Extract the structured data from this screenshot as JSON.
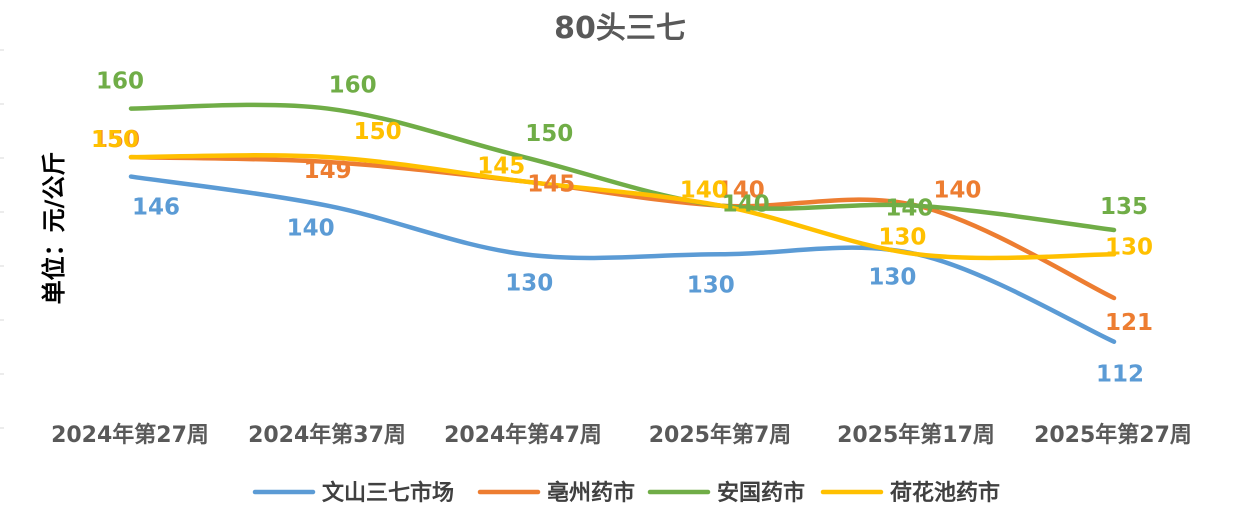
{
  "chart_data": {
    "type": "line",
    "title": "80头三七",
    "ylabel": "单位：元/公斤",
    "categories": [
      "2024年第27周",
      "2024年第37周",
      "2024年第47周",
      "2025年第7周",
      "2025年第17周",
      "2025年第27周"
    ],
    "ylim": [
      100,
      170
    ],
    "grid": false,
    "legend_position": "bottom",
    "series": [
      {
        "name": "文山三七市场",
        "color": "#5B9BD5",
        "values": [
          146,
          140,
          130,
          130,
          130,
          112
        ]
      },
      {
        "name": "亳州药市",
        "color": "#ED7D31",
        "values": [
          150,
          149,
          145,
          140,
          140,
          121
        ]
      },
      {
        "name": "安国药市",
        "color": "#70AD47",
        "values": [
          160,
          160,
          150,
          140,
          140,
          135
        ]
      },
      {
        "name": "荷花池药市",
        "color": "#FFC000",
        "values": [
          150,
          150,
          145,
          140,
          130,
          130
        ]
      }
    ]
  }
}
